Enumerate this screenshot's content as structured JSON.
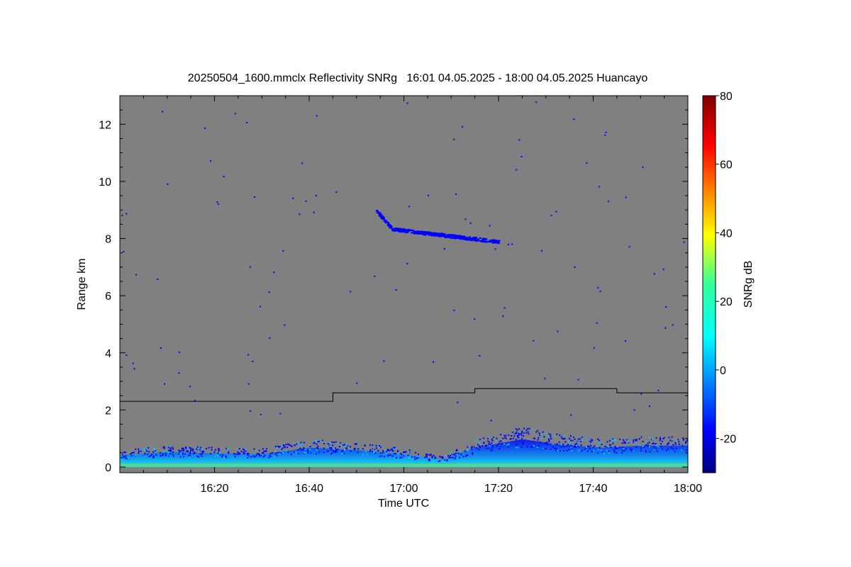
{
  "chart_data": {
    "type": "heatmap",
    "title": "20250504_1600.mmclx Reflectivity SNRg   16:01 04.05.2025 - 18:00 04.05.2025 Huancayo",
    "xlabel": "Time UTC",
    "ylabel": "Range km",
    "x_ticks": [
      "16:20",
      "16:40",
      "17:00",
      "17:20",
      "17:40",
      "18:00"
    ],
    "y_ticks": [
      "0",
      "2",
      "4",
      "6",
      "8",
      "10",
      "12"
    ],
    "xlim": [
      "16:00",
      "18:00"
    ],
    "ylim": [
      0,
      13
    ],
    "background_color": "#808080",
    "colorbar": {
      "label": "SNRg dB",
      "range": [
        -30,
        80
      ],
      "ticks": [
        "-20",
        "0",
        "20",
        "40",
        "60",
        "80"
      ],
      "colormap": "jet"
    },
    "boundary_line": {
      "color": "#000000",
      "steps": [
        {
          "start": "16:00",
          "end": "16:45",
          "range_km": 2.3
        },
        {
          "start": "16:45",
          "end": "17:15",
          "range_km": 2.6
        },
        {
          "start": "17:15",
          "end": "17:45",
          "range_km": 2.75
        },
        {
          "start": "17:45",
          "end": "18:00",
          "range_km": 2.6
        }
      ]
    },
    "cloud_layer": {
      "start": "16:54",
      "end": "17:20",
      "top_km": 9.0,
      "base_km": 7.85,
      "snr_db": -20
    },
    "low_level_echo": {
      "top_km_profile": [
        {
          "time": "16:00",
          "top_km": 0.55
        },
        {
          "time": "16:10",
          "top_km": 0.7
        },
        {
          "time": "16:20",
          "top_km": 0.65
        },
        {
          "time": "16:30",
          "top_km": 0.6
        },
        {
          "time": "16:40",
          "top_km": 0.9
        },
        {
          "time": "16:50",
          "top_km": 0.8
        },
        {
          "time": "17:00",
          "top_km": 0.6
        },
        {
          "time": "17:08",
          "top_km": 0.35
        },
        {
          "time": "17:15",
          "top_km": 0.9
        },
        {
          "time": "17:25",
          "top_km": 1.3
        },
        {
          "time": "17:33",
          "top_km": 1.05
        },
        {
          "time": "17:42",
          "top_km": 0.9
        },
        {
          "time": "17:50",
          "top_km": 1.0
        },
        {
          "time": "18:00",
          "top_km": 1.0
        }
      ]
    }
  }
}
